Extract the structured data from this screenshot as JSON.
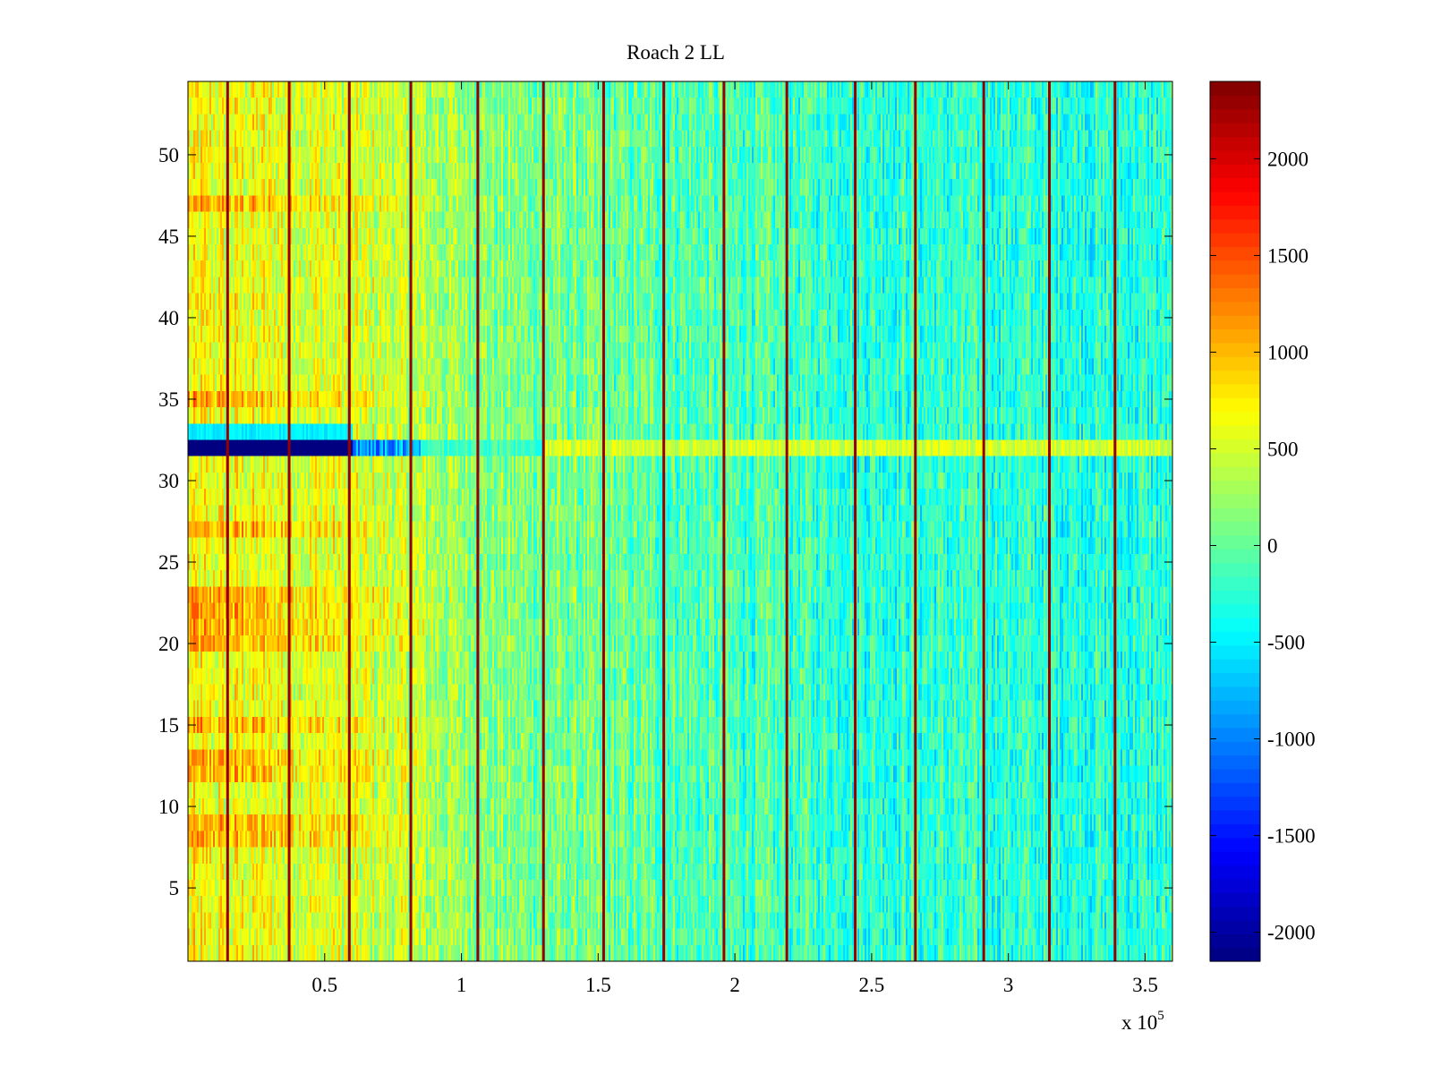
{
  "chart_data": {
    "type": "heatmap",
    "title": "Roach 2 LL",
    "xlabel": "",
    "ylabel": "",
    "x_exponent_label": "x 10",
    "x_exponent_power": "5",
    "xlim": [
      0,
      3.6
    ],
    "ylim": [
      0.5,
      54.5
    ],
    "x_ticks": [
      0.5,
      1,
      1.5,
      2,
      2.5,
      3,
      3.5
    ],
    "x_tick_labels": [
      "0.5",
      "1",
      "1.5",
      "2",
      "2.5",
      "3",
      "3.5"
    ],
    "y_ticks": [
      5,
      10,
      15,
      20,
      25,
      30,
      35,
      40,
      45,
      50
    ],
    "y_tick_labels": [
      "5",
      "10",
      "15",
      "20",
      "25",
      "30",
      "35",
      "40",
      "45",
      "50"
    ],
    "colorbar": {
      "colormap": "jet",
      "clim": [
        -2150,
        2400
      ],
      "ticks": [
        2000,
        1500,
        1000,
        500,
        0,
        -500,
        -1000,
        -1500,
        -2000
      ],
      "tick_labels": [
        "2000",
        "1500",
        "1000",
        "500",
        "0",
        "-500",
        "-1000",
        "-1500",
        "-2000"
      ]
    },
    "rows": 54,
    "trend": {
      "x_points": [
        0,
        0.5,
        0.85,
        1.1,
        1.5,
        2.0,
        2.5,
        3.0,
        3.6
      ],
      "mean_values": [
        650,
        560,
        350,
        150,
        20,
        -130,
        -220,
        -260,
        -280
      ]
    },
    "warm_rows": [
      8,
      9,
      12,
      13,
      15,
      20,
      21,
      22,
      23,
      27,
      35,
      47
    ],
    "anomaly_row": {
      "row": 32,
      "segments": [
        {
          "x_from": 0,
          "x_to": 0.6,
          "value": -2150
        },
        {
          "x_from": 0.6,
          "x_to": 0.85,
          "value": -900
        },
        {
          "x_from": 0.85,
          "x_to": 1.3,
          "value": 0
        },
        {
          "x_from": 1.3,
          "x_to": 3.6,
          "value": 650
        }
      ]
    },
    "cool_band": {
      "rows": [
        33
      ],
      "x_from": 0,
      "x_to": 0.6,
      "value": -500
    },
    "spike_columns": [
      0.145,
      0.37,
      0.59,
      0.815,
      1.06,
      1.3,
      1.52,
      1.74,
      1.96,
      2.19,
      2.44,
      2.66,
      2.91,
      3.15,
      3.39
    ],
    "spike_value": 2300
  }
}
